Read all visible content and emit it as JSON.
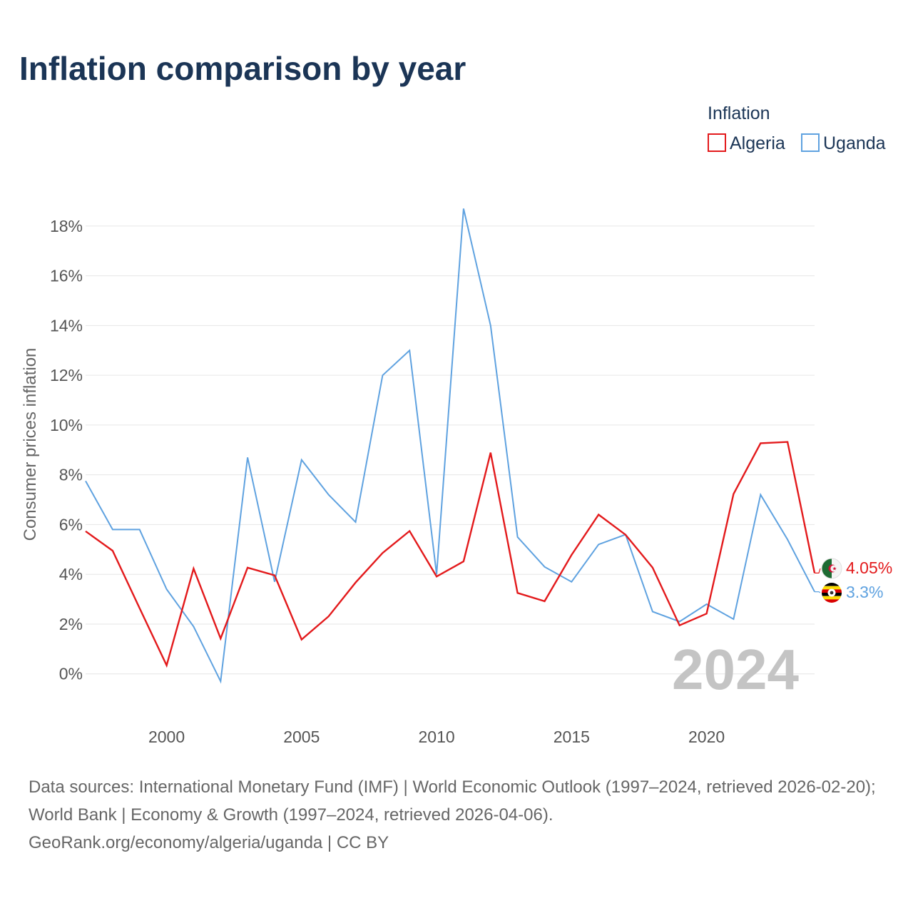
{
  "title": "Inflation comparison by year",
  "legend": {
    "title": "Inflation",
    "items": [
      {
        "name": "Algeria",
        "color": "#e31a1c"
      },
      {
        "name": "Uganda",
        "color": "#5fa2e0"
      }
    ]
  },
  "year_watermark": "2024",
  "end_labels": {
    "algeria": "4.05%",
    "uganda": "3.3%"
  },
  "flags": {
    "algeria": "algeria-flag-icon",
    "uganda": "uganda-flag-icon"
  },
  "footer": {
    "sources": "Data sources: International Monetary Fund (IMF) | World Economic Outlook (1997–2024, retrieved 2026-02-20); World Bank | Economy & Growth (1997–2024, retrieved 2026-04-06).",
    "credit": "GeoRank.org/economy/algeria/uganda | CC BY"
  },
  "chart_data": {
    "type": "line",
    "title": "Inflation comparison by year",
    "xlabel": "",
    "ylabel": "Consumer prices inflation",
    "x": [
      1997,
      1998,
      1999,
      2000,
      2001,
      2002,
      2003,
      2004,
      2005,
      2006,
      2007,
      2008,
      2009,
      2010,
      2011,
      2012,
      2013,
      2014,
      2015,
      2016,
      2017,
      2018,
      2019,
      2020,
      2021,
      2022,
      2023,
      2024
    ],
    "xlim": [
      1997,
      2024
    ],
    "ylim": [
      -1.7,
      19
    ],
    "x_ticks": [
      2000,
      2005,
      2010,
      2015,
      2020
    ],
    "y_ticks": [
      0,
      2,
      4,
      6,
      8,
      10,
      12,
      14,
      16,
      18
    ],
    "y_tick_labels": [
      "0%",
      "2%",
      "4%",
      "6%",
      "8%",
      "10%",
      "12%",
      "14%",
      "16%",
      "18%"
    ],
    "grid": true,
    "legend_position": "top-right",
    "series": [
      {
        "name": "Algeria",
        "color": "#e31a1c",
        "values": [
          5.73,
          4.95,
          2.64,
          0.34,
          4.23,
          1.42,
          4.27,
          3.96,
          1.38,
          2.31,
          3.67,
          4.86,
          5.74,
          3.91,
          4.52,
          8.89,
          3.25,
          2.92,
          4.78,
          6.4,
          5.59,
          4.27,
          1.95,
          2.42,
          7.23,
          9.27,
          9.32,
          4.05
        ]
      },
      {
        "name": "Uganda",
        "color": "#5fa2e0",
        "values": [
          7.75,
          5.8,
          5.8,
          3.4,
          1.9,
          -0.3,
          8.7,
          3.7,
          8.6,
          7.2,
          6.1,
          12.0,
          13.0,
          4.0,
          18.7,
          14.0,
          5.5,
          4.3,
          3.7,
          5.2,
          5.6,
          2.5,
          2.1,
          2.8,
          2.2,
          7.2,
          5.4,
          3.3
        ]
      }
    ]
  }
}
